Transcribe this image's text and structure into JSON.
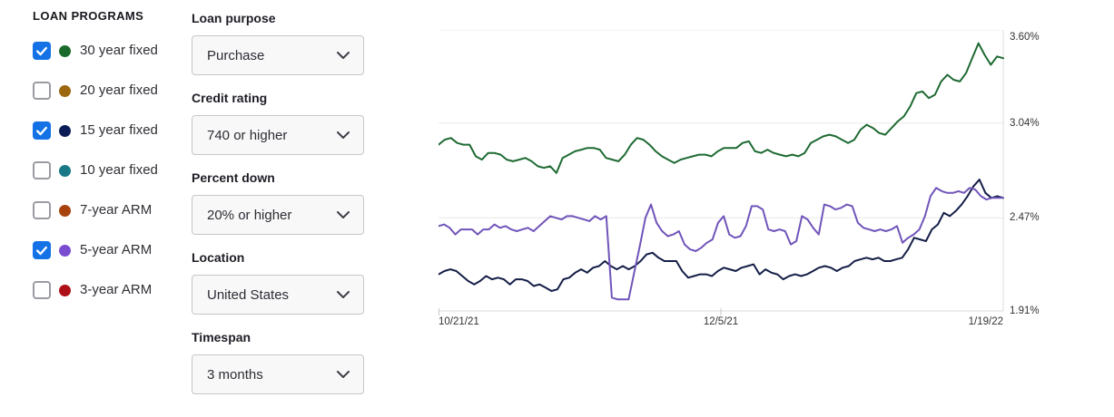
{
  "loan_programs": {
    "title": "LOAN PROGRAMS",
    "checkbox_checked_color": "#1472e6",
    "items": [
      {
        "label": "30 year fixed",
        "checked": true,
        "color": "#1a6b2b"
      },
      {
        "label": "20 year fixed",
        "checked": false,
        "color": "#9c680f"
      },
      {
        "label": "15 year fixed",
        "checked": true,
        "color": "#0b1b55"
      },
      {
        "label": "10 year fixed",
        "checked": false,
        "color": "#187888"
      },
      {
        "label": "7-year ARM",
        "checked": false,
        "color": "#a8430e"
      },
      {
        "label": "5-year ARM",
        "checked": true,
        "color": "#7a4cd0"
      },
      {
        "label": "3-year ARM",
        "checked": false,
        "color": "#ad1117"
      }
    ]
  },
  "filters": [
    {
      "label": "Loan purpose",
      "value": "Purchase"
    },
    {
      "label": "Credit rating",
      "value": "740 or higher"
    },
    {
      "label": "Percent down",
      "value": "20% or higher"
    },
    {
      "label": "Location",
      "value": "United States"
    },
    {
      "label": "Timespan",
      "value": "3 months"
    }
  ],
  "chart_data": {
    "type": "line",
    "title": "",
    "xlabel": "",
    "ylabel": "",
    "grid": true,
    "ylim": [
      1.91,
      3.6
    ],
    "y_ticks": [
      {
        "label": "3.60%",
        "value": 3.6
      },
      {
        "label": "3.04%",
        "value": 3.04
      },
      {
        "label": "2.47%",
        "value": 2.47
      },
      {
        "label": "1.91%",
        "value": 1.91
      }
    ],
    "x_ticks": [
      {
        "label": "10/21/21",
        "frac": 0.0,
        "align": "left"
      },
      {
        "label": "12/5/21",
        "frac": 0.5,
        "align": "center"
      },
      {
        "label": "1/19/22",
        "frac": 1.0,
        "align": "right"
      }
    ],
    "x_range": [
      "10/21/21",
      "1/19/22"
    ],
    "series": [
      {
        "name": "30 year fixed",
        "color": "#1e6a32",
        "values": [
          2.91,
          2.94,
          2.95,
          2.92,
          2.91,
          2.91,
          2.84,
          2.82,
          2.86,
          2.86,
          2.85,
          2.82,
          2.81,
          2.82,
          2.83,
          2.81,
          2.78,
          2.77,
          2.78,
          2.74,
          2.83,
          2.85,
          2.87,
          2.88,
          2.89,
          2.89,
          2.88,
          2.83,
          2.82,
          2.81,
          2.85,
          2.91,
          2.95,
          2.94,
          2.91,
          2.87,
          2.84,
          2.82,
          2.8,
          2.82,
          2.83,
          2.84,
          2.85,
          2.85,
          2.84,
          2.87,
          2.89,
          2.89,
          2.89,
          2.92,
          2.93,
          2.87,
          2.86,
          2.88,
          2.86,
          2.85,
          2.84,
          2.85,
          2.84,
          2.86,
          2.92,
          2.94,
          2.96,
          2.97,
          2.96,
          2.94,
          2.92,
          2.94,
          3.0,
          3.03,
          3.01,
          2.98,
          2.97,
          3.01,
          3.05,
          3.08,
          3.14,
          3.22,
          3.23,
          3.19,
          3.21,
          3.29,
          3.33,
          3.3,
          3.29,
          3.34,
          3.43,
          3.52,
          3.45,
          3.39,
          3.44,
          3.43
        ]
      },
      {
        "name": "15 year fixed",
        "color": "#141e47",
        "values": [
          2.13,
          2.15,
          2.16,
          2.15,
          2.12,
          2.09,
          2.07,
          2.09,
          2.12,
          2.1,
          2.11,
          2.1,
          2.07,
          2.1,
          2.1,
          2.09,
          2.06,
          2.07,
          2.05,
          2.03,
          2.04,
          2.1,
          2.11,
          2.14,
          2.16,
          2.14,
          2.17,
          2.18,
          2.21,
          2.18,
          2.16,
          2.18,
          2.16,
          2.18,
          2.21,
          2.25,
          2.26,
          2.23,
          2.21,
          2.21,
          2.21,
          2.15,
          2.11,
          2.12,
          2.13,
          2.13,
          2.12,
          2.15,
          2.17,
          2.16,
          2.15,
          2.17,
          2.18,
          2.19,
          2.13,
          2.16,
          2.14,
          2.13,
          2.1,
          2.12,
          2.13,
          2.12,
          2.13,
          2.15,
          2.17,
          2.18,
          2.17,
          2.15,
          2.17,
          2.18,
          2.21,
          2.22,
          2.23,
          2.22,
          2.23,
          2.21,
          2.21,
          2.22,
          2.23,
          2.28,
          2.35,
          2.34,
          2.33,
          2.4,
          2.43,
          2.5,
          2.48,
          2.51,
          2.55,
          2.6,
          2.66,
          2.7,
          2.62,
          2.59,
          2.6,
          2.59
        ]
      },
      {
        "name": "5-year ARM",
        "color": "#7054ba",
        "values": [
          2.42,
          2.43,
          2.41,
          2.37,
          2.4,
          2.4,
          2.4,
          2.37,
          2.4,
          2.4,
          2.43,
          2.41,
          2.42,
          2.4,
          2.39,
          2.4,
          2.41,
          2.39,
          2.42,
          2.45,
          2.48,
          2.47,
          2.46,
          2.48,
          2.48,
          2.47,
          2.46,
          2.45,
          2.48,
          2.46,
          2.48,
          1.99,
          1.98,
          1.98,
          1.98,
          2.14,
          2.3,
          2.47,
          2.55,
          2.44,
          2.39,
          2.36,
          2.37,
          2.39,
          2.31,
          2.28,
          2.27,
          2.29,
          2.32,
          2.34,
          2.44,
          2.48,
          2.37,
          2.35,
          2.36,
          2.42,
          2.54,
          2.54,
          2.52,
          2.4,
          2.39,
          2.4,
          2.39,
          2.31,
          2.33,
          2.48,
          2.46,
          2.41,
          2.37,
          2.55,
          2.54,
          2.52,
          2.53,
          2.55,
          2.54,
          2.44,
          2.41,
          2.4,
          2.39,
          2.4,
          2.39,
          2.4,
          2.42,
          2.32,
          2.35,
          2.37,
          2.4,
          2.48,
          2.6,
          2.65,
          2.63,
          2.62,
          2.62,
          2.63,
          2.62,
          2.65,
          2.64,
          2.6,
          2.58,
          2.59,
          2.59,
          2.59
        ]
      }
    ]
  }
}
